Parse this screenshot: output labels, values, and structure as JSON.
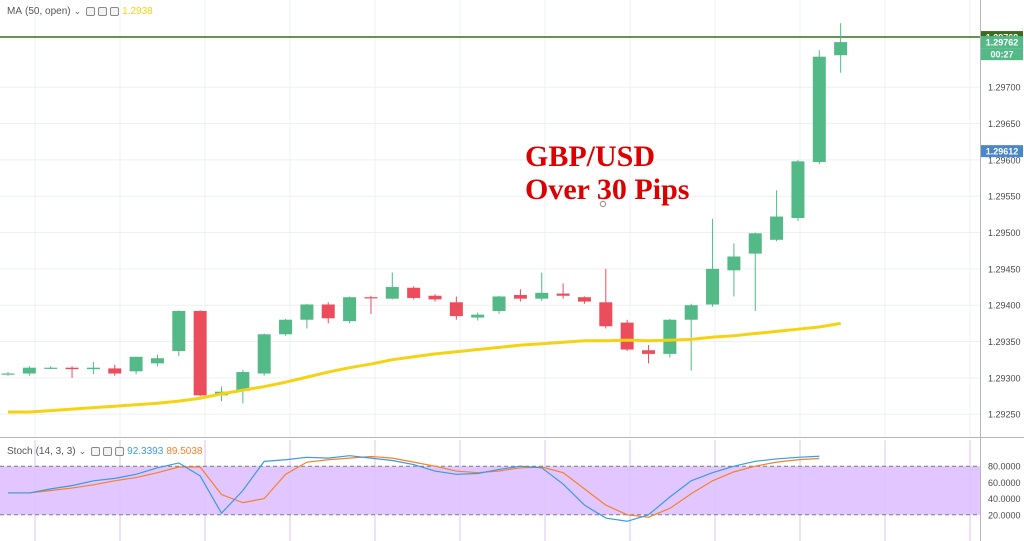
{
  "price_pane": {
    "indicator": {
      "name": "MA",
      "params": "(50, open)",
      "value": "1.2938",
      "color": "#f5d313"
    },
    "annotation": {
      "line1": "GBP/USD",
      "line2": "Over 30 Pips"
    },
    "price_tags": [
      {
        "text": "1.29769",
        "value": 1.29769,
        "bg": "#3d6b1f",
        "fg": "#ffffff"
      },
      {
        "text": "1.29762",
        "value": 1.29762,
        "bg": "#53b987",
        "fg": "#ffffff"
      },
      {
        "text": "00:27",
        "value": null,
        "bg": "#53b987",
        "fg": "#ffffff"
      },
      {
        "text": "1.29612",
        "value": 1.29612,
        "bg": "#4a87c9",
        "fg": "#ffffff"
      }
    ]
  },
  "stoch_pane": {
    "indicator": {
      "name": "Stoch",
      "params": "(14, 3, 3)",
      "k_value": "92.3393",
      "d_value": "89.5038",
      "k_color": "#3b9ae1",
      "d_color": "#f5822a"
    }
  },
  "colors": {
    "up": "#53b987",
    "down": "#eb4d5c",
    "ma": "#f5d313",
    "stoch_band": "#e2c6ff",
    "target_line": "#3d6b1f"
  },
  "chart_data": [
    {
      "type": "candlestick",
      "title": "",
      "y_axis": {
        "ticks": [
          "1.29250",
          "1.29300",
          "1.29350",
          "1.29400",
          "1.29450",
          "1.29500",
          "1.29550",
          "1.29600",
          "1.29650",
          "1.29700"
        ],
        "range": [
          1.2922,
          1.2982
        ]
      },
      "horizontal_line": 1.29769,
      "candles": [
        {
          "o": 1.29305,
          "h": 1.29308,
          "l": 1.29303,
          "c": 1.29306
        },
        {
          "o": 1.29306,
          "h": 1.29316,
          "l": 1.29303,
          "c": 1.29314
        },
        {
          "o": 1.29314,
          "h": 1.29316,
          "l": 1.29312,
          "c": 1.29314
        },
        {
          "o": 1.29314,
          "h": 1.29316,
          "l": 1.293,
          "c": 1.29312
        },
        {
          "o": 1.29312,
          "h": 1.29322,
          "l": 1.29305,
          "c": 1.29314
        },
        {
          "o": 1.29313,
          "h": 1.29318,
          "l": 1.29303,
          "c": 1.29306
        },
        {
          "o": 1.29309,
          "h": 1.29328,
          "l": 1.29305,
          "c": 1.29329
        },
        {
          "o": 1.2932,
          "h": 1.29332,
          "l": 1.29316,
          "c": 1.29327
        },
        {
          "o": 1.29337,
          "h": 1.29393,
          "l": 1.2933,
          "c": 1.29392
        },
        {
          "o": 1.29392,
          "h": 1.29393,
          "l": 1.29275,
          "c": 1.29276
        },
        {
          "o": 1.29276,
          "h": 1.29288,
          "l": 1.29268,
          "c": 1.29281
        },
        {
          "o": 1.29282,
          "h": 1.29311,
          "l": 1.29265,
          "c": 1.29308
        },
        {
          "o": 1.29306,
          "h": 1.29361,
          "l": 1.29303,
          "c": 1.2936
        },
        {
          "o": 1.2936,
          "h": 1.29381,
          "l": 1.29358,
          "c": 1.2938
        },
        {
          "o": 1.2938,
          "h": 1.29402,
          "l": 1.29368,
          "c": 1.29401
        },
        {
          "o": 1.29401,
          "h": 1.29404,
          "l": 1.29375,
          "c": 1.29382
        },
        {
          "o": 1.29378,
          "h": 1.29412,
          "l": 1.29375,
          "c": 1.29411
        },
        {
          "o": 1.29411,
          "h": 1.29413,
          "l": 1.29388,
          "c": 1.2941
        },
        {
          "o": 1.29409,
          "h": 1.29445,
          "l": 1.29408,
          "c": 1.29425
        },
        {
          "o": 1.29424,
          "h": 1.29426,
          "l": 1.29408,
          "c": 1.2941
        },
        {
          "o": 1.29413,
          "h": 1.29415,
          "l": 1.29405,
          "c": 1.29408
        },
        {
          "o": 1.29404,
          "h": 1.29412,
          "l": 1.2938,
          "c": 1.29385
        },
        {
          "o": 1.29383,
          "h": 1.2939,
          "l": 1.29379,
          "c": 1.29387
        },
        {
          "o": 1.29392,
          "h": 1.29413,
          "l": 1.29388,
          "c": 1.29412
        },
        {
          "o": 1.29414,
          "h": 1.29422,
          "l": 1.29405,
          "c": 1.29409
        },
        {
          "o": 1.29409,
          "h": 1.29445,
          "l": 1.29406,
          "c": 1.29417
        },
        {
          "o": 1.29416,
          "h": 1.2943,
          "l": 1.29409,
          "c": 1.29413
        },
        {
          "o": 1.29411,
          "h": 1.29412,
          "l": 1.29402,
          "c": 1.29405
        },
        {
          "o": 1.29404,
          "h": 1.2945,
          "l": 1.29368,
          "c": 1.29371
        },
        {
          "o": 1.29376,
          "h": 1.2938,
          "l": 1.29337,
          "c": 1.29339
        },
        {
          "o": 1.29338,
          "h": 1.29345,
          "l": 1.2932,
          "c": 1.29333
        },
        {
          "o": 1.29333,
          "h": 1.29381,
          "l": 1.29328,
          "c": 1.2938
        },
        {
          "o": 1.2938,
          "h": 1.29402,
          "l": 1.2931,
          "c": 1.294
        },
        {
          "o": 1.29401,
          "h": 1.29519,
          "l": 1.29398,
          "c": 1.2945
        },
        {
          "o": 1.29448,
          "h": 1.29485,
          "l": 1.29412,
          "c": 1.29467
        },
        {
          "o": 1.29471,
          "h": 1.295,
          "l": 1.29392,
          "c": 1.29499
        },
        {
          "o": 1.2949,
          "h": 1.29558,
          "l": 1.29488,
          "c": 1.29522
        },
        {
          "o": 1.2952,
          "h": 1.296,
          "l": 1.29516,
          "c": 1.29598
        },
        {
          "o": 1.29597,
          "h": 1.29751,
          "l": 1.29594,
          "c": 1.29742
        },
        {
          "o": 1.29744,
          "h": 1.29788,
          "l": 1.2972,
          "c": 1.29762
        }
      ],
      "series": [
        {
          "name": "MA (50, open)",
          "type": "line",
          "values": [
            1.29253,
            1.29253,
            1.29255,
            1.29257,
            1.29259,
            1.29261,
            1.29263,
            1.29265,
            1.29268,
            1.29272,
            1.29278,
            1.29283,
            1.29288,
            1.29294,
            1.29301,
            1.29308,
            1.29314,
            1.29319,
            1.29325,
            1.29329,
            1.29333,
            1.29336,
            1.29339,
            1.29342,
            1.29345,
            1.29347,
            1.29349,
            1.29351,
            1.29351,
            1.29352,
            1.29351,
            1.29352,
            1.29353,
            1.29356,
            1.29358,
            1.29361,
            1.29364,
            1.29367,
            1.2937,
            1.29375
          ]
        }
      ]
    },
    {
      "type": "line",
      "title": "",
      "y_axis": {
        "ticks": [
          "20.0000",
          "40.0000",
          "60.0000",
          "80.0000"
        ],
        "range": [
          0,
          100
        ]
      },
      "band": [
        20,
        80
      ],
      "series": [
        {
          "name": "%K",
          "values": [
            47,
            47,
            52,
            56,
            62,
            65,
            70,
            78,
            84,
            68,
            22,
            50,
            86,
            88,
            91,
            90,
            93,
            90,
            87,
            82,
            74,
            70,
            71,
            76,
            80,
            78,
            58,
            32,
            16,
            12,
            20,
            42,
            62,
            72,
            80,
            86,
            89,
            91,
            92.3
          ]
        },
        {
          "name": "%D",
          "values": [
            47,
            47,
            50,
            53,
            57,
            62,
            66,
            72,
            79,
            79,
            45,
            35,
            40,
            70,
            85,
            88,
            90,
            92,
            90,
            85,
            80,
            74,
            72,
            74,
            78,
            79,
            72,
            52,
            32,
            20,
            17,
            28,
            46,
            62,
            73,
            80,
            85,
            88,
            89.5
          ]
        }
      ]
    }
  ]
}
